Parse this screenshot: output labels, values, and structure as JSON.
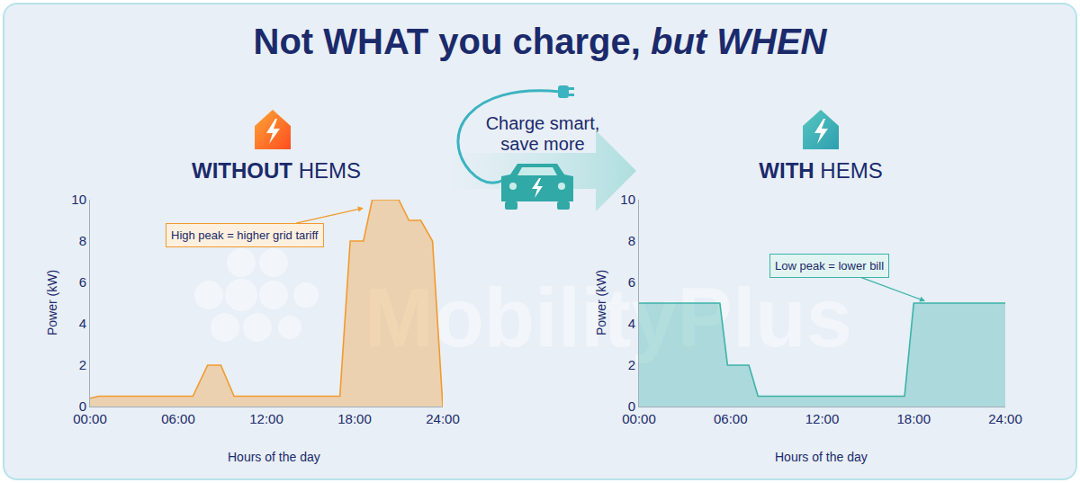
{
  "title": "Not WHAT you charge, but WHEN",
  "center_label": "Charge smart, save more",
  "watermark": "MobilityPlus",
  "chart_data": [
    {
      "type": "area",
      "title": "WITHOUT HEMS",
      "x": [
        0,
        0.6,
        7.0,
        8.0,
        8.9,
        9.8,
        17.0,
        17.7,
        18.6,
        19.2,
        21.0,
        21.7,
        22.5,
        23.3,
        24
      ],
      "values": [
        0.4,
        0.5,
        0.5,
        2,
        2,
        0.5,
        0.5,
        8,
        8,
        10,
        10,
        9,
        9,
        8,
        0
      ],
      "color": "#f29a2e",
      "xlabel": "Hours of the day",
      "ylabel": "Power (kW)",
      "xlim": [
        0,
        24
      ],
      "xticks": [
        {
          "value": 0,
          "label": "00:00"
        },
        {
          "value": 6,
          "label": "06:00"
        },
        {
          "value": 12,
          "label": "12:00"
        },
        {
          "value": 18,
          "label": "18:00"
        },
        {
          "value": 24,
          "label": "24:00"
        }
      ],
      "ylim": [
        0,
        10
      ],
      "yticks": [
        0,
        2,
        4,
        6,
        8,
        10
      ],
      "grid": false,
      "annotations": [
        "High peak = higher grid tariff"
      ]
    },
    {
      "type": "area",
      "title": "WITH HEMS",
      "x": [
        0,
        5.3,
        5.8,
        7.2,
        7.8,
        17.4,
        18.0,
        24
      ],
      "values": [
        5,
        5,
        2,
        2,
        0.5,
        0.5,
        5,
        5
      ],
      "color": "#3bb3a9",
      "xlabel": "Hours of the day",
      "ylabel": "Power (kW)",
      "xlim": [
        0,
        24
      ],
      "xticks": [
        {
          "value": 0,
          "label": "00:00"
        },
        {
          "value": 6,
          "label": "06:00"
        },
        {
          "value": 12,
          "label": "12:00"
        },
        {
          "value": 18,
          "label": "18:00"
        },
        {
          "value": 24,
          "label": "24:00"
        }
      ],
      "ylim": [
        0,
        10
      ],
      "yticks": [
        0,
        2,
        4,
        6,
        8,
        10
      ],
      "grid": false,
      "annotations": [
        "Low peak = lower bill"
      ]
    }
  ]
}
